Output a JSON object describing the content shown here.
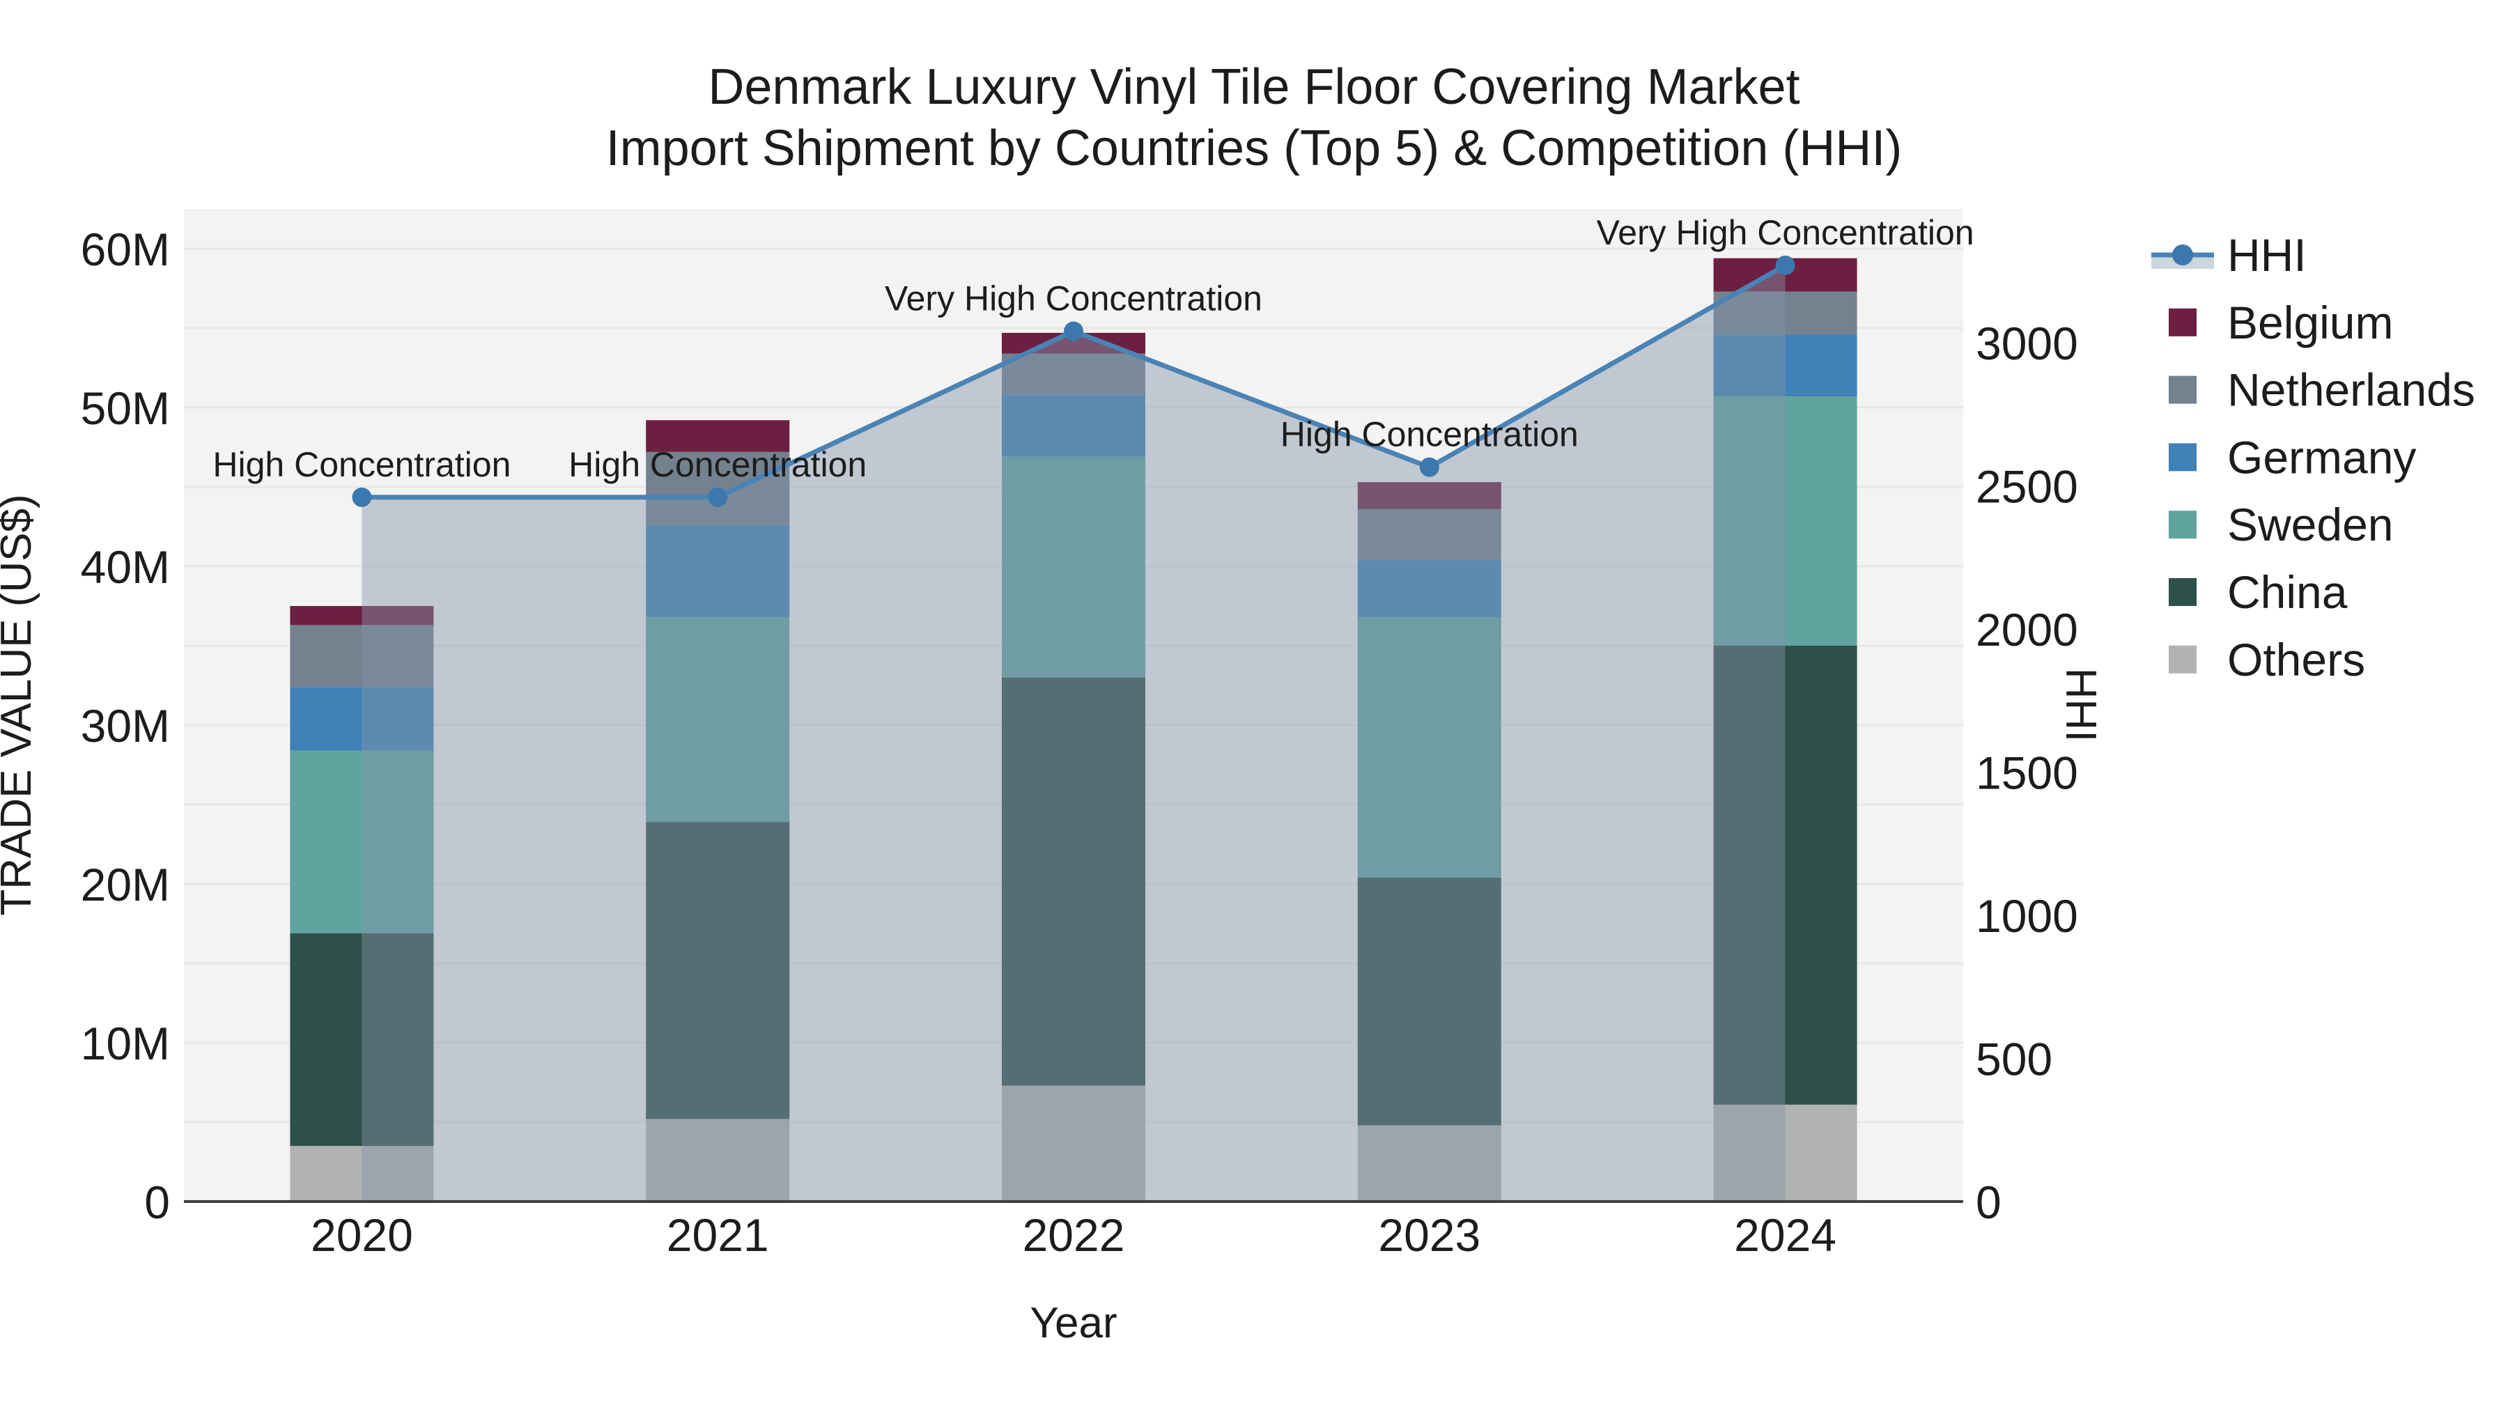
{
  "title": {
    "line1": "Denmark Luxury Vinyl Tile Floor Covering Market",
    "line2": "Import Shipment by Countries (Top 5) & Competition (HHI)"
  },
  "axes": {
    "x": {
      "label": "Year"
    },
    "y_left": {
      "label": "TRADE VALUE (US$)",
      "ticks": [
        {
          "value": 0,
          "label": "0"
        },
        {
          "value": 10,
          "label": "10M"
        },
        {
          "value": 20,
          "label": "20M"
        },
        {
          "value": 30,
          "label": "30M"
        },
        {
          "value": 40,
          "label": "40M"
        },
        {
          "value": 50,
          "label": "50M"
        },
        {
          "value": 60,
          "label": "60M"
        }
      ],
      "max": 62.5,
      "gridline_step": 5
    },
    "y_right": {
      "label": "HHI",
      "ticks": [
        {
          "value": 0,
          "label": "0"
        },
        {
          "value": 500,
          "label": "500"
        },
        {
          "value": 1000,
          "label": "1000"
        },
        {
          "value": 1500,
          "label": "1500"
        },
        {
          "value": 2000,
          "label": "2000"
        },
        {
          "value": 2500,
          "label": "2500"
        },
        {
          "value": 3000,
          "label": "3000"
        }
      ],
      "max": 3467
    }
  },
  "chart_data": {
    "type": "bar",
    "subtype": "stacked-bars-with-line-overlay",
    "categories": [
      "2020",
      "2021",
      "2022",
      "2023",
      "2024"
    ],
    "bar_value_unit": "million US$",
    "series": [
      {
        "name": "Others",
        "color": "#b0b3b1",
        "values": [
          3.5,
          5.2,
          7.3,
          4.8,
          6.1
        ]
      },
      {
        "name": "China",
        "color": "#2f4f4a",
        "values": [
          13.4,
          18.7,
          25.7,
          15.6,
          28.9
        ]
      },
      {
        "name": "Sweden",
        "color": "#60a39f",
        "values": [
          11.5,
          12.9,
          13.9,
          16.4,
          15.7
        ]
      },
      {
        "name": "Germany",
        "color": "#4081b7",
        "values": [
          4.0,
          5.8,
          3.9,
          3.6,
          3.9
        ]
      },
      {
        "name": "Netherlands",
        "color": "#74818f",
        "values": [
          3.9,
          4.6,
          2.6,
          3.2,
          2.7
        ]
      },
      {
        "name": "Belgium",
        "color": "#6c1f40",
        "values": [
          1.2,
          2.0,
          1.3,
          1.7,
          2.1
        ]
      }
    ],
    "totals": [
      37.5,
      49.2,
      54.7,
      45.3,
      59.4
    ],
    "line": {
      "name": "HHI",
      "values": [
        2460,
        2460,
        3040,
        2565,
        3270
      ],
      "annotations": [
        "High Concentration",
        "High Concentration",
        "Very High Concentration",
        "High Concentration",
        "Very High Concentration"
      ],
      "line_color": "#4a83b5",
      "marker_color": "#3c78ad",
      "area_fill": "rgba(133,148,168,0.45)"
    },
    "ylim_left": [
      0,
      62.5
    ],
    "ylim_right": [
      0,
      3467
    ],
    "grid": true,
    "legend_position": "right"
  },
  "legend": {
    "items": [
      {
        "label": "HHI",
        "type": "line",
        "color": "#4a83b5",
        "band_color": "#cdd5df"
      },
      {
        "label": "Belgium",
        "type": "swatch",
        "color": "#6c1f40"
      },
      {
        "label": "Netherlands",
        "type": "swatch",
        "color": "#74818f"
      },
      {
        "label": "Germany",
        "type": "swatch",
        "color": "#4081b7"
      },
      {
        "label": "Sweden",
        "type": "swatch",
        "color": "#60a39f"
      },
      {
        "label": "China",
        "type": "swatch",
        "color": "#2f4f4a"
      },
      {
        "label": "Others",
        "type": "swatch",
        "color": "#b0b3b1"
      }
    ]
  },
  "colors": {
    "plot_bg": "#f3f3f3",
    "gridline": "#e7e7e7",
    "axis_line": "#3f3f3f",
    "text": "#1c1c1c"
  }
}
